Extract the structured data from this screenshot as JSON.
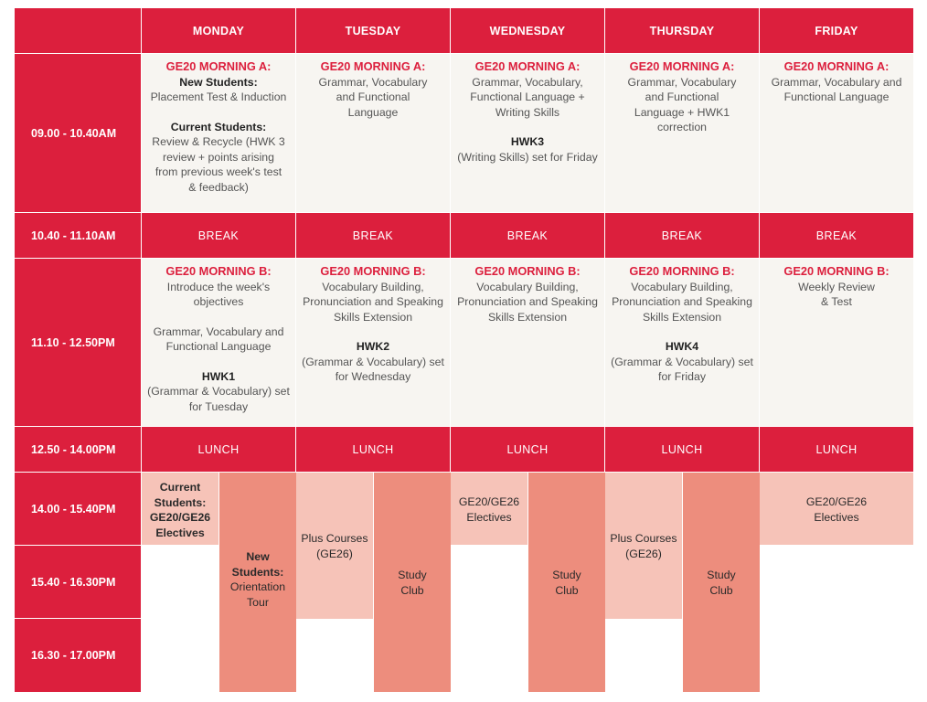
{
  "days": [
    "MONDAY",
    "TUESDAY",
    "WEDNESDAY",
    "THURSDAY",
    "FRIDAY"
  ],
  "times": [
    "09.00 - 10.40AM",
    "10.40 - 11.10AM",
    "11.10 - 12.50PM",
    "12.50 - 14.00PM",
    "14.00 - 15.40PM",
    "15.40 - 16.30PM",
    "16.30 - 17.00PM"
  ],
  "break_label": "BREAK",
  "lunch_label": "LUNCH",
  "morning_a": {
    "monday": {
      "title": "GE20 MORNING A:",
      "new_heading": "New Students:",
      "new_text": "Placement Test & Induction",
      "current_heading": "Current Students:",
      "current_text": "Review & Recycle (HWK 3 review + points arising from previous week's test & feedback)"
    },
    "tuesday": {
      "title": "GE20 MORNING A:",
      "text": "Grammar, Vocabulary and Functional Language"
    },
    "wednesday": {
      "title": "GE20 MORNING A:",
      "text": "Grammar, Vocabulary, Functional Language + Writing Skills",
      "hwk": "HWK3",
      "hwk_text": "(Writing Skills) set for Friday"
    },
    "thursday": {
      "title": "GE20 MORNING A:",
      "text": "Grammar, Vocabulary and Functional Language + HWK1 correction"
    },
    "friday": {
      "title": "GE20 MORNING A:",
      "text": "Grammar, Vocabulary and Functional Language"
    }
  },
  "morning_b": {
    "monday": {
      "title": "GE20 MORNING B:",
      "text1": "Introduce the week's objectives",
      "text2": "Grammar, Vocabulary and Functional Language",
      "hwk": "HWK1",
      "hwk_text": "(Grammar & Vocabulary) set for Tuesday"
    },
    "tuesday": {
      "title": "GE20 MORNING B:",
      "text": "Vocabulary Building, Pronunciation and Speaking Skills Extension",
      "hwk": "HWK2",
      "hwk_text": "(Grammar & Vocabulary) set for Wednesday"
    },
    "wednesday": {
      "title": "GE20 MORNING B:",
      "text": "Vocabulary Building, Pronunciation and Speaking Skills Extension"
    },
    "thursday": {
      "title": "GE20 MORNING B:",
      "text": "Vocabulary Building, Pronunciation and Speaking Skills Extension",
      "hwk": "HWK4",
      "hwk_text": "(Grammar & Vocabulary) set for Friday"
    },
    "friday": {
      "title": "GE20 MORNING B:",
      "text": "Weekly Review & Test"
    }
  },
  "afternoon": {
    "monday_current": "Current Students: GE20/GE26 Electives",
    "monday_new": "New Students:",
    "monday_new_text": "Orientation Tour",
    "plus_courses": "Plus Courses (GE26)",
    "study_club": "Study Club",
    "electives": "GE20/GE26 Electives"
  },
  "colors": {
    "red": "#dc1f3d",
    "light_pink": "#f6c3b8",
    "dark_pink": "#ed8d7d",
    "content_bg": "#f7f5f1"
  }
}
